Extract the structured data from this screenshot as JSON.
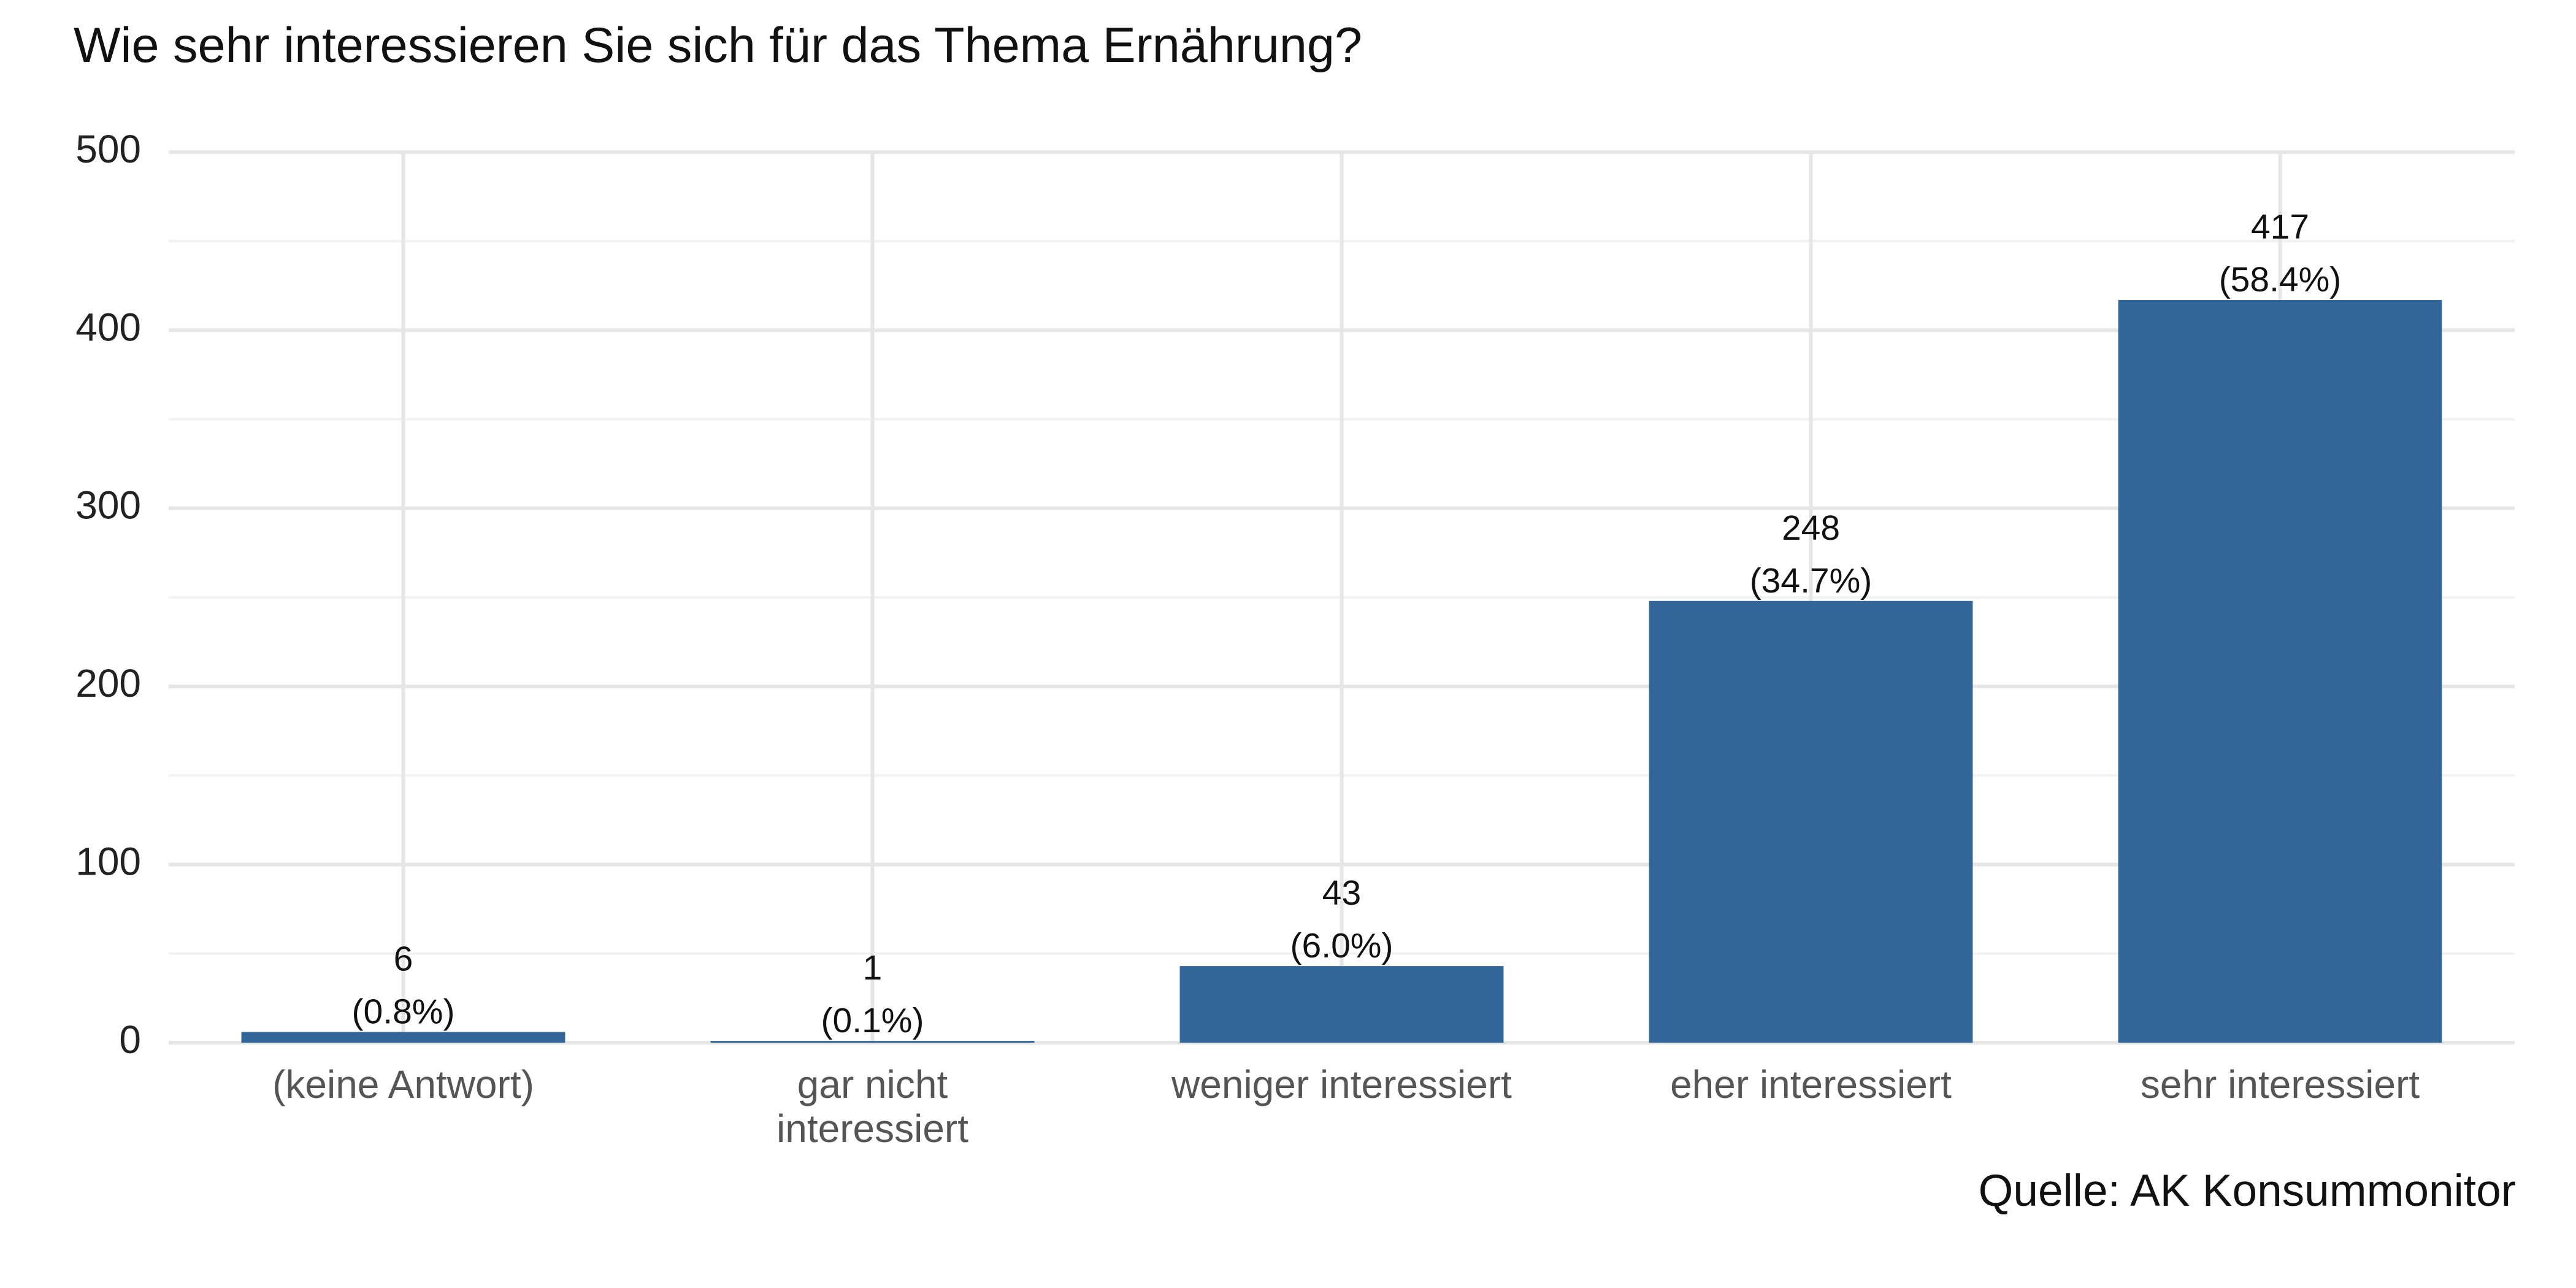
{
  "chart_data": {
    "type": "bar",
    "title": "Wie sehr interessieren Sie sich für das Thema Ernährung?",
    "caption": "Quelle: AK Konsummonitor",
    "categories": [
      [
        "(keine Antwort)"
      ],
      [
        "gar nicht",
        "interessiert"
      ],
      [
        "weniger interessiert"
      ],
      [
        "eher interessiert"
      ],
      [
        "sehr interessiert"
      ]
    ],
    "values": [
      6,
      1,
      43,
      248,
      417
    ],
    "value_labels": [
      "6",
      "1",
      "43",
      "248",
      "417"
    ],
    "percent_labels": [
      "(0.8%)",
      "(0.1%)",
      "(6.0%)",
      "(34.7%)",
      "(58.4%)"
    ],
    "xlabel": "",
    "ylabel": "",
    "ylim": [
      0,
      500
    ],
    "yticks": [
      0,
      100,
      200,
      300,
      400,
      500
    ],
    "grid": true,
    "legend": "none",
    "colors": {
      "bar": "#336699",
      "grid_major": "#e6e6e6",
      "grid_minor": "#f2f2f2"
    }
  }
}
